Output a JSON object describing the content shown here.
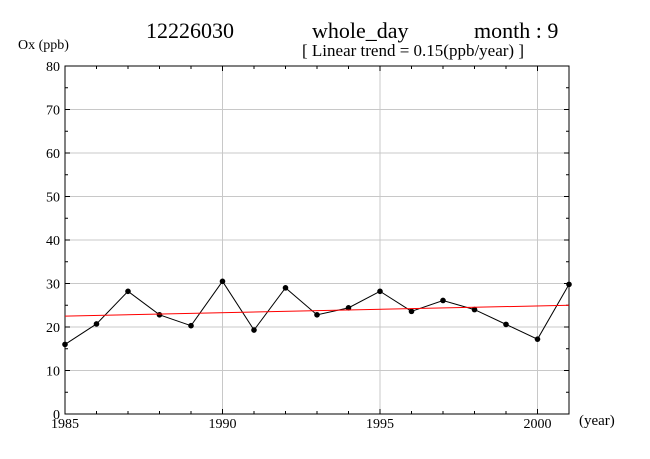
{
  "header": {
    "station": "12226030",
    "period": "whole_day",
    "month": "month : 9",
    "trend": "[ Linear trend = 0.15(ppb/year) ]"
  },
  "chart_data": {
    "type": "line",
    "ylabel": "Ox (ppb)",
    "xlabel": "(year)",
    "xlim": [
      1985,
      2001
    ],
    "ylim": [
      0,
      80
    ],
    "xticks": [
      1985,
      1990,
      1995,
      2000
    ],
    "yticks": [
      0,
      10,
      20,
      30,
      40,
      50,
      60,
      70,
      80
    ],
    "grid": true,
    "series": [
      {
        "x": [
          1985,
          1986,
          1987,
          1988,
          1989,
          1990,
          1991,
          1992,
          1993,
          1994,
          1995,
          1996,
          1997,
          1998,
          1999,
          2000,
          2001
        ],
        "values": [
          16.0,
          20.7,
          28.2,
          22.8,
          20.3,
          30.5,
          19.3,
          29.0,
          22.8,
          24.4,
          28.2,
          23.6,
          26.1,
          24.0,
          20.6,
          17.2,
          29.8
        ],
        "color": "#000000"
      }
    ],
    "trend_line": {
      "x": [
        1985,
        2001
      ],
      "values": [
        22.5,
        25.0
      ],
      "color": "#ff0000"
    }
  }
}
